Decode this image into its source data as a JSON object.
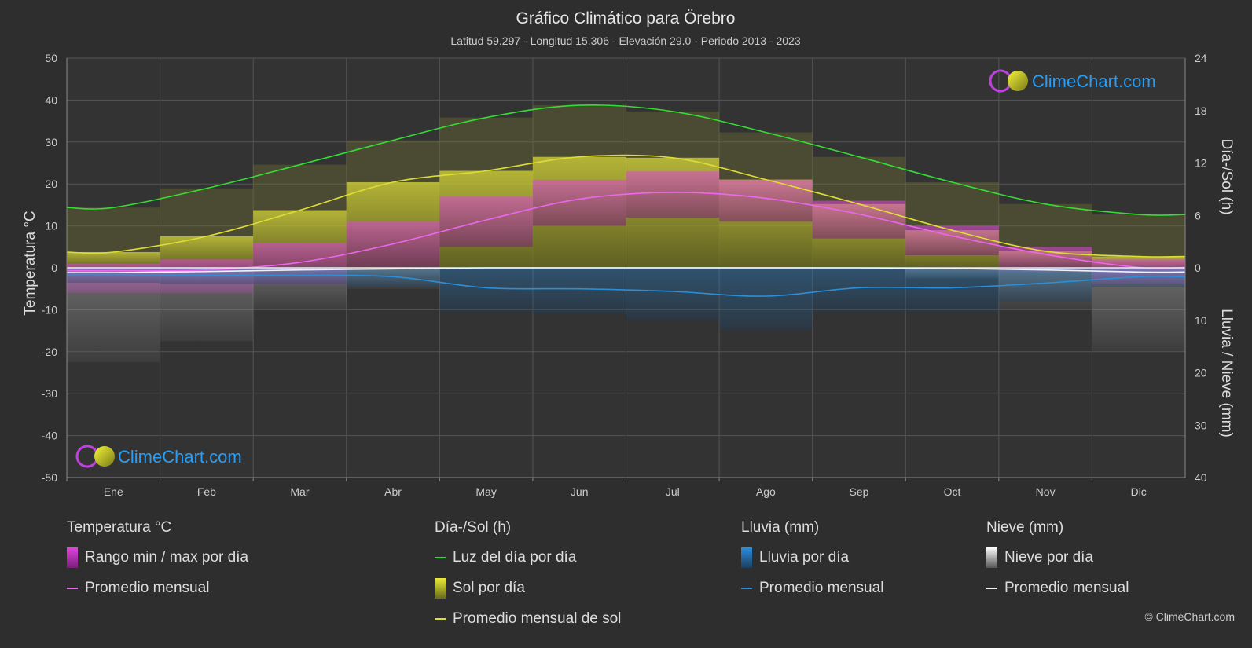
{
  "title": "Gráfico Climático para Örebro",
  "subtitle": "Latitud 59.297 - Longitud 15.306 - Elevación 29.0 - Periodo 2013 - 2023",
  "watermark": "ClimeChart.com",
  "copyright": "© ClimeChart.com",
  "chart_data": {
    "type": "line",
    "categories": [
      "Ene",
      "Feb",
      "Mar",
      "Abr",
      "May",
      "Jun",
      "Jul",
      "Ago",
      "Sep",
      "Oct",
      "Nov",
      "Dic"
    ],
    "y_left": {
      "label": "Temperatura °C",
      "range": [
        -50,
        50
      ],
      "ticks": [
        50,
        40,
        30,
        20,
        10,
        0,
        -10,
        -20,
        -30,
        -40,
        -50
      ]
    },
    "y_right_top": {
      "label": "Día-/Sol (h)",
      "range": [
        0,
        24
      ],
      "ticks": [
        24,
        18,
        12,
        6,
        0
      ]
    },
    "y_right_bottom": {
      "label": "Lluvia / Nieve (mm)",
      "range": [
        0,
        40
      ],
      "ticks": [
        10,
        20,
        30,
        40
      ]
    },
    "grid": true,
    "series": [
      {
        "name": "Luz del día por día",
        "axis": "sun_h",
        "values": [
          6.9,
          9.1,
          11.8,
          14.6,
          17.2,
          18.6,
          17.9,
          15.5,
          12.7,
          9.8,
          7.3,
          6.1
        ]
      },
      {
        "name": "Promedio mensual de sol",
        "axis": "sun_h",
        "values": [
          1.8,
          3.6,
          6.6,
          9.8,
          11.1,
          12.7,
          12.6,
          10.1,
          7.3,
          4.3,
          1.9,
          1.3
        ]
      },
      {
        "name": "Promedio mensual",
        "group": "Temperatura °C",
        "axis": "temp_c",
        "values": [
          -0.7,
          -0.5,
          1.3,
          5.7,
          11.4,
          16.4,
          18.0,
          16.6,
          12.8,
          7.6,
          3.2,
          0.1
        ]
      },
      {
        "name": "Promedio mensual",
        "group": "Lluvia (mm)",
        "axis": "precip_mm",
        "values": [
          1.3,
          1.4,
          1.4,
          1.7,
          3.8,
          4.0,
          4.5,
          5.4,
          3.8,
          3.8,
          2.9,
          1.7
        ]
      },
      {
        "name": "Promedio mensual",
        "group": "Nieve (mm)",
        "axis": "precip_mm",
        "values": [
          0.9,
          0.7,
          0.4,
          0.2,
          0.0,
          0.0,
          0.0,
          0.0,
          0.0,
          0.1,
          0.4,
          0.8
        ]
      }
    ],
    "temp_range": {
      "name": "Rango min / max por día",
      "max": [
        1.0,
        2.0,
        6.0,
        11.0,
        17.0,
        21.0,
        23.0,
        21.0,
        16.0,
        10.0,
        5.0,
        2.0
      ],
      "min": [
        -6.0,
        -6.0,
        -4.0,
        0.0,
        5.0,
        10.0,
        12.0,
        11.0,
        7.0,
        3.0,
        -1.0,
        -4.0
      ]
    },
    "colors": {
      "daylight": "#33dd33",
      "sunshine": "#dddd33",
      "sunshine_fill": "#9a9a2a",
      "temp_avg": "#ee66ee",
      "temp_range": "#d13fbf",
      "rain": "#2b8fd8",
      "rain_fill": "#2a5f86",
      "snow_avg": "#f2f2f2",
      "snow_fill": "#6a6a6a"
    }
  },
  "legend": {
    "groups": [
      {
        "title": "Temperatura °C",
        "items": [
          {
            "label": "Rango min / max por día"
          },
          {
            "label": "Promedio mensual"
          }
        ]
      },
      {
        "title": "Día-/Sol (h)",
        "items": [
          {
            "label": "Luz del día por día"
          },
          {
            "label": "Sol por día"
          },
          {
            "label": "Promedio mensual de sol"
          }
        ]
      },
      {
        "title": "Lluvia (mm)",
        "items": [
          {
            "label": "Lluvia por día"
          },
          {
            "label": "Promedio mensual"
          }
        ]
      },
      {
        "title": "Nieve (mm)",
        "items": [
          {
            "label": "Nieve por día"
          },
          {
            "label": "Promedio mensual"
          }
        ]
      }
    ]
  }
}
